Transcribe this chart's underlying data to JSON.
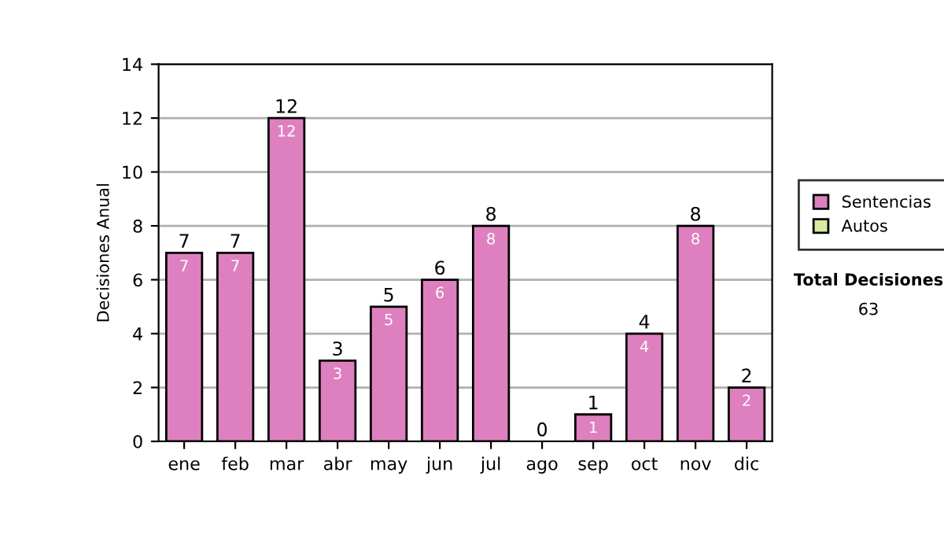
{
  "chart_data": {
    "type": "bar",
    "stacked": true,
    "ylabel": "Decisiones Anual",
    "categories": [
      "ene",
      "feb",
      "mar",
      "abr",
      "may",
      "jun",
      "jul",
      "ago",
      "sep",
      "oct",
      "nov",
      "dic"
    ],
    "series": [
      {
        "name": "Sentencias",
        "color": "#de80c0",
        "values": [
          7,
          7,
          12,
          3,
          5,
          6,
          8,
          0,
          1,
          4,
          8,
          2
        ],
        "value_labels": [
          "7",
          "7",
          "12",
          "3",
          "5",
          "6",
          "8",
          null,
          "1",
          "4",
          "8",
          "2"
        ]
      },
      {
        "name": "Autos",
        "color": "#d8eaa0",
        "values": [
          0,
          0,
          0,
          0,
          0,
          0,
          0,
          0,
          0,
          0,
          0,
          0
        ]
      }
    ],
    "totals": [
      "7",
      "7",
      "12",
      "3",
      "5",
      "6",
      "8",
      "0",
      "1",
      "4",
      "8",
      "2"
    ],
    "ylim": [
      0,
      14
    ],
    "yticks": [
      0,
      2,
      4,
      6,
      8,
      10,
      12,
      14
    ],
    "grid": "y",
    "legend": "right",
    "annotations": [
      "Total Decisiones",
      "63"
    ]
  }
}
